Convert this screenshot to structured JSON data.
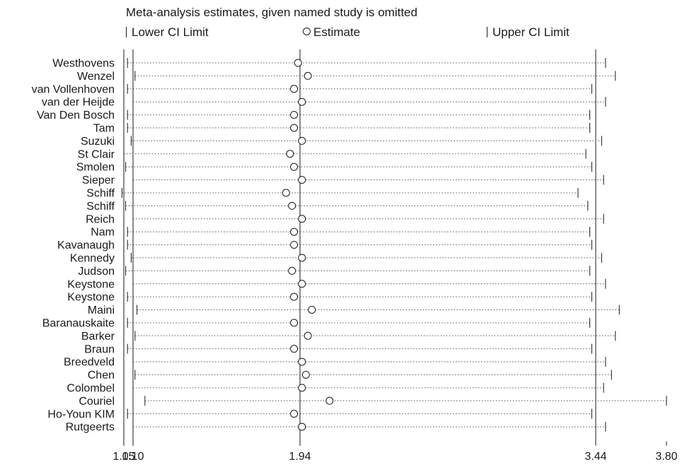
{
  "chart_data": {
    "type": "scatter",
    "title": "Meta-analysis estimates, given named study is omitted",
    "legend": {
      "lower": "Lower CI Limit",
      "estimate": "Estimate",
      "upper": "Upper CI Limit"
    },
    "x_ticks": [
      {
        "value": 1.05,
        "label": "1.05"
      },
      {
        "value": 1.1,
        "label": "1.10"
      },
      {
        "value": 1.94,
        "label": "1.94"
      },
      {
        "value": 3.44,
        "label": "3.44"
      },
      {
        "value": 3.8,
        "label": "3.80"
      }
    ],
    "reference_lines": [
      1.1,
      1.94,
      3.44
    ],
    "xlim": [
      1.05,
      3.8
    ],
    "grid": false,
    "studies": [
      {
        "name": "Westhovens",
        "lower": 1.07,
        "estimate": 1.93,
        "upper": 3.49
      },
      {
        "name": "Wenzel",
        "lower": 1.11,
        "estimate": 1.98,
        "upper": 3.54
      },
      {
        "name": "van Vollenhoven",
        "lower": 1.07,
        "estimate": 1.91,
        "upper": 3.42
      },
      {
        "name": "van der Heijde",
        "lower": 1.1,
        "estimate": 1.95,
        "upper": 3.49
      },
      {
        "name": "Van Den Bosch",
        "lower": 1.07,
        "estimate": 1.91,
        "upper": 3.41
      },
      {
        "name": "Tam",
        "lower": 1.07,
        "estimate": 1.91,
        "upper": 3.41
      },
      {
        "name": "Suzuki",
        "lower": 1.09,
        "estimate": 1.95,
        "upper": 3.47
      },
      {
        "name": "St Clair",
        "lower": 1.05,
        "estimate": 1.89,
        "upper": 3.39
      },
      {
        "name": "Smolen",
        "lower": 1.06,
        "estimate": 1.91,
        "upper": 3.42
      },
      {
        "name": "Sieper",
        "lower": 1.1,
        "estimate": 1.95,
        "upper": 3.48
      },
      {
        "name": "Schiff",
        "lower": 1.04,
        "estimate": 1.87,
        "upper": 3.35
      },
      {
        "name": "Schiff",
        "lower": 1.06,
        "estimate": 1.9,
        "upper": 3.4
      },
      {
        "name": "Reich",
        "lower": 1.1,
        "estimate": 1.95,
        "upper": 3.48
      },
      {
        "name": "Nam",
        "lower": 1.07,
        "estimate": 1.91,
        "upper": 3.41
      },
      {
        "name": "Kavanaugh",
        "lower": 1.07,
        "estimate": 1.91,
        "upper": 3.42
      },
      {
        "name": "Kennedy",
        "lower": 1.09,
        "estimate": 1.95,
        "upper": 3.47
      },
      {
        "name": "Judson",
        "lower": 1.06,
        "estimate": 1.9,
        "upper": 3.41
      },
      {
        "name": "Keystone",
        "lower": 1.1,
        "estimate": 1.95,
        "upper": 3.49
      },
      {
        "name": "Keystone",
        "lower": 1.07,
        "estimate": 1.91,
        "upper": 3.42
      },
      {
        "name": "Maini",
        "lower": 1.12,
        "estimate": 2.0,
        "upper": 3.56
      },
      {
        "name": "Baranauskaite",
        "lower": 1.07,
        "estimate": 1.91,
        "upper": 3.41
      },
      {
        "name": "Barker",
        "lower": 1.11,
        "estimate": 1.98,
        "upper": 3.54
      },
      {
        "name": "Braun",
        "lower": 1.07,
        "estimate": 1.91,
        "upper": 3.42
      },
      {
        "name": "Breedveld",
        "lower": 1.1,
        "estimate": 1.95,
        "upper": 3.49
      },
      {
        "name": "Chen",
        "lower": 1.11,
        "estimate": 1.97,
        "upper": 3.52
      },
      {
        "name": "Colombel",
        "lower": 1.1,
        "estimate": 1.95,
        "upper": 3.48
      },
      {
        "name": "Couriel",
        "lower": 1.16,
        "estimate": 2.09,
        "upper": 3.8
      },
      {
        "name": "Ho-Youn KIM",
        "lower": 1.07,
        "estimate": 1.91,
        "upper": 3.42
      },
      {
        "name": "Rutgeerts",
        "lower": 1.1,
        "estimate": 1.95,
        "upper": 3.49
      }
    ]
  }
}
